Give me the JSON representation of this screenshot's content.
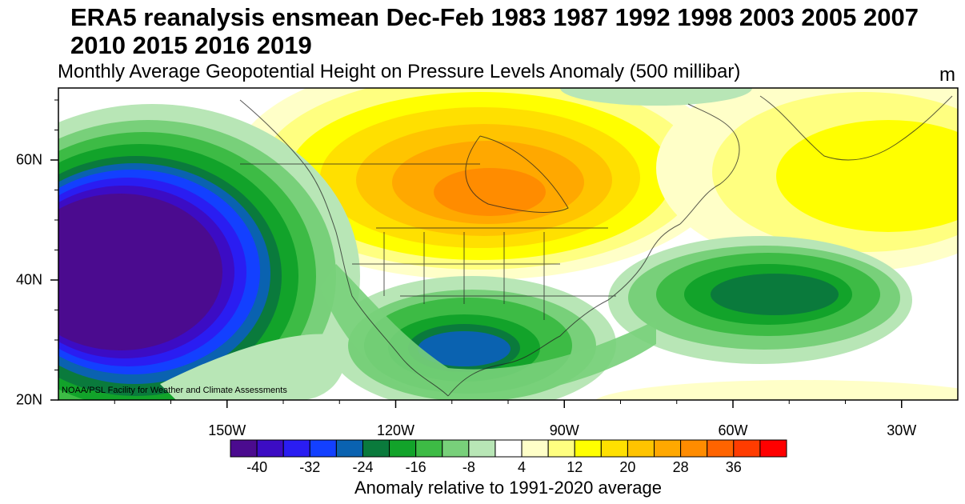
{
  "title": "ERA5 reanalysis ensmean Dec-Feb 1983 1987 1992 1998 2003 2005 2007 2010 2015 2016 2019",
  "subtitle": "Monthly Average Geopotential Height on Pressure Levels Anomaly (500 millibar)",
  "unit": "m",
  "credit": "NOAA/PSL Facility for Weather and Climate Assessments",
  "x_ticks": [
    "150W",
    "120W",
    "90W",
    "60W",
    "30W"
  ],
  "x_tick_lons": [
    -150,
    -120,
    -90,
    -60,
    -30
  ],
  "y_ticks": [
    "60N",
    "40N",
    "20N"
  ],
  "y_tick_lats": [
    60,
    40,
    20
  ],
  "lon_range": [
    -180,
    -20
  ],
  "lat_range": [
    20,
    72
  ],
  "colorbar": {
    "title": "Anomaly relative to 1991-2020 average",
    "tick_labels": [
      "-40",
      "-32",
      "-24",
      "-16",
      "-8",
      "4",
      "12",
      "20",
      "28",
      "36"
    ],
    "colors": [
      "#4b0b8f",
      "#3c0cc4",
      "#2a1df2",
      "#1340ff",
      "#0a62b0",
      "#0a7a3c",
      "#12a32a",
      "#3dbb45",
      "#78d07a",
      "#b8e6b6",
      "#ffffff",
      "#ffffc8",
      "#ffff80",
      "#ffff00",
      "#ffe000",
      "#ffc400",
      "#ffa800",
      "#ff8c00",
      "#ff6400",
      "#ff3c00",
      "#ff0000"
    ]
  }
}
